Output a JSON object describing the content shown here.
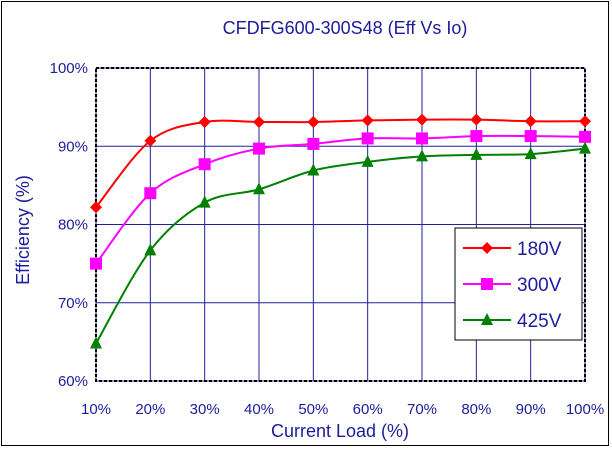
{
  "chart_data": {
    "type": "line",
    "title": "CFDFG600-300S48  (Eff Vs Io)",
    "xlabel": "Current Load (%)",
    "ylabel": "Efficiency (%)",
    "categories": [
      "10%",
      "20%",
      "30%",
      "40%",
      "50%",
      "60%",
      "70%",
      "80%",
      "90%",
      "100%"
    ],
    "x": [
      10,
      20,
      30,
      40,
      50,
      60,
      70,
      80,
      90,
      100
    ],
    "xlim": [
      10,
      100
    ],
    "ylim": [
      60,
      100
    ],
    "yticks": [
      "60%",
      "70%",
      "80%",
      "90%",
      "100%"
    ],
    "ytick_values": [
      60,
      70,
      80,
      90,
      100
    ],
    "grid": true,
    "legend_position": "right",
    "series": [
      {
        "name": "180V",
        "color": "#ff0000",
        "marker": "diamond",
        "values": [
          82.2,
          90.7,
          93.1,
          93.1,
          93.1,
          93.3,
          93.4,
          93.4,
          93.2,
          93.2
        ]
      },
      {
        "name": "300V",
        "color": "#ff00ff",
        "marker": "square",
        "values": [
          75.0,
          84.0,
          87.7,
          89.7,
          90.3,
          91.0,
          91.0,
          91.3,
          91.3,
          91.2
        ]
      },
      {
        "name": "425V",
        "color": "#008000",
        "marker": "triangle",
        "values": [
          64.8,
          76.7,
          82.8,
          84.5,
          86.9,
          88.0,
          88.7,
          88.9,
          89.0,
          89.7
        ]
      }
    ]
  }
}
